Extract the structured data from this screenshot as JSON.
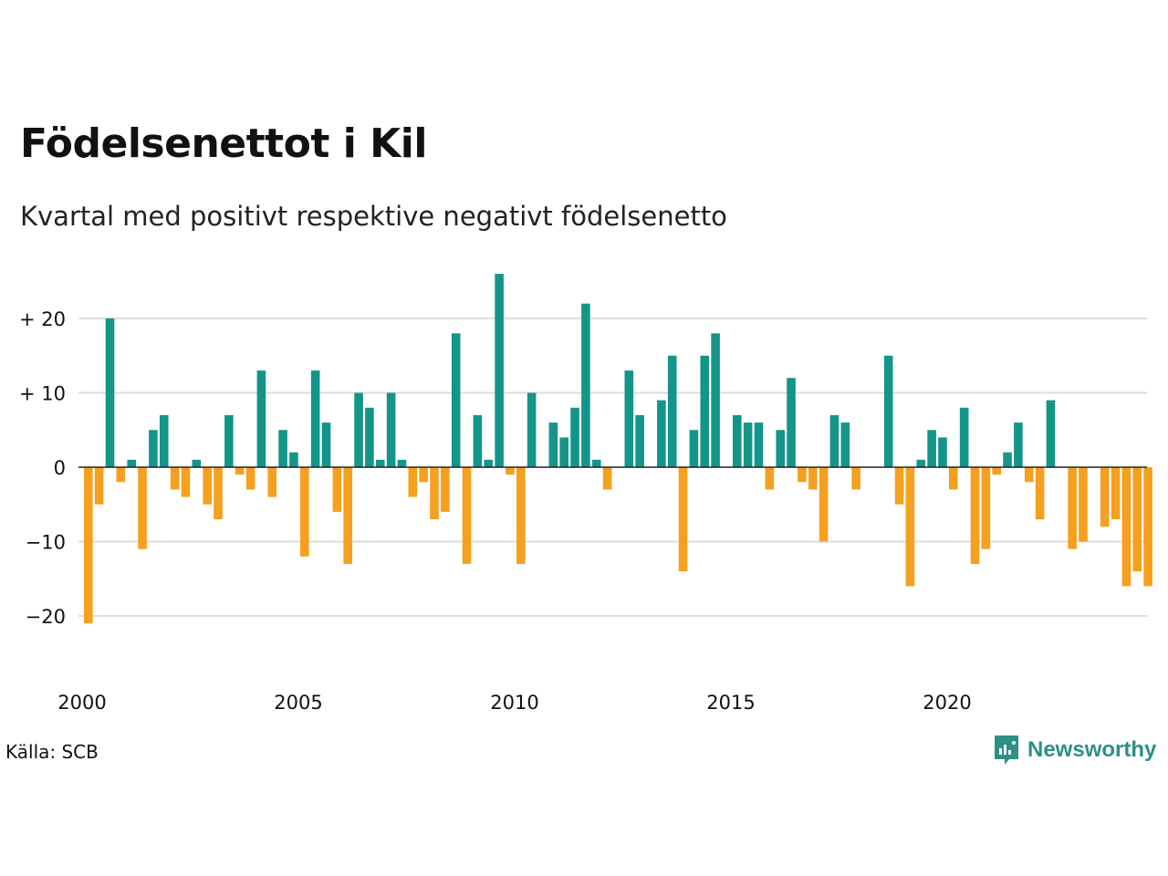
{
  "title": "Födelsenettot i Kil",
  "subtitle": "Kvartal med positivt respektive negativt födelsenetto",
  "source": "Källa: SCB",
  "brand": "Newsworthy",
  "colors": {
    "positive": "#14958a",
    "negative": "#f5a01e",
    "grid": "#dddddd",
    "zero": "#222222",
    "brand": "#2e8f85"
  },
  "chart_data": {
    "type": "bar",
    "x_start": "2000-Q1",
    "ylim": [
      -25,
      28
    ],
    "y_ticks": [
      {
        "value": 20,
        "label": "+ 20"
      },
      {
        "value": 10,
        "label": "+ 10"
      },
      {
        "value": 0,
        "label": "0"
      },
      {
        "value": -10,
        "label": "−10"
      },
      {
        "value": -20,
        "label": "−20"
      }
    ],
    "x_ticks": [
      {
        "year": 2000,
        "label": "2000"
      },
      {
        "year": 2005,
        "label": "2005"
      },
      {
        "year": 2010,
        "label": "2010"
      },
      {
        "year": 2015,
        "label": "2015"
      },
      {
        "year": 2020,
        "label": "2020"
      }
    ],
    "values": [
      -21,
      -5,
      20,
      -2,
      1,
      -11,
      5,
      7,
      -3,
      -4,
      1,
      -5,
      -7,
      7,
      -1,
      -3,
      13,
      -4,
      5,
      2,
      -12,
      13,
      6,
      -6,
      -13,
      10,
      8,
      1,
      10,
      1,
      -4,
      -2,
      -7,
      -6,
      18,
      -13,
      7,
      1,
      26,
      -1,
      -13,
      10,
      0,
      6,
      4,
      8,
      22,
      1,
      -3,
      0,
      13,
      7,
      0,
      9,
      15,
      -14,
      5,
      15,
      18,
      0,
      7,
      6,
      6,
      -3,
      5,
      12,
      -2,
      -3,
      -10,
      7,
      6,
      -3,
      0,
      0,
      15,
      -5,
      -16,
      1,
      5,
      4,
      -3,
      8,
      -13,
      -11,
      -1,
      2,
      6,
      -2,
      -7,
      9,
      0,
      -11,
      -10,
      0,
      -8,
      -7,
      -16,
      -14,
      -16
    ]
  }
}
